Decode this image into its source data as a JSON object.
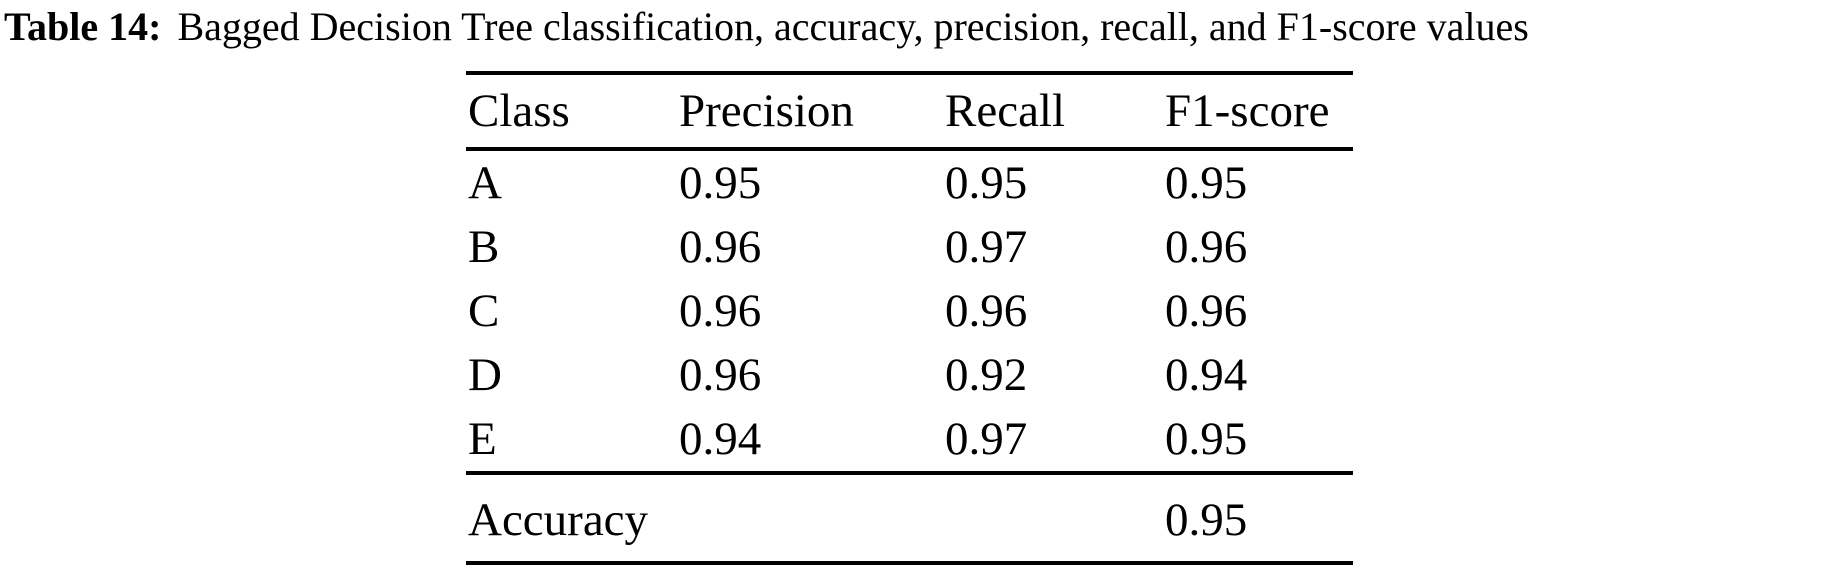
{
  "caption": {
    "label": "Table 14:",
    "text": "Bagged Decision Tree classification, accuracy, precision, recall, and F1-score values"
  },
  "table": {
    "headers": [
      "Class",
      "Precision",
      "Recall",
      "F1-score"
    ],
    "rows": [
      {
        "class": "A",
        "precision": "0.95",
        "recall": "0.95",
        "f1": "0.95"
      },
      {
        "class": "B",
        "precision": "0.96",
        "recall": "0.97",
        "f1": "0.96"
      },
      {
        "class": "C",
        "precision": "0.96",
        "recall": "0.96",
        "f1": "0.96"
      },
      {
        "class": "D",
        "precision": "0.96",
        "recall": "0.92",
        "f1": "0.94"
      },
      {
        "class": "E",
        "precision": "0.94",
        "recall": "0.97",
        "f1": "0.95"
      }
    ],
    "footer": {
      "label": "Accuracy",
      "value": "0.95"
    }
  },
  "colors": {
    "text": "#000000",
    "background": "#ffffff",
    "rule": "#000000"
  },
  "chart_data": {
    "type": "table",
    "title": "Table 14: Bagged Decision Tree classification, accuracy, precision, recall, and F1-score values",
    "columns": [
      "Class",
      "Precision",
      "Recall",
      "F1-score"
    ],
    "rows": [
      [
        "A",
        0.95,
        0.95,
        0.95
      ],
      [
        "B",
        0.96,
        0.97,
        0.96
      ],
      [
        "C",
        0.96,
        0.96,
        0.96
      ],
      [
        "D",
        0.96,
        0.92,
        0.94
      ],
      [
        "E",
        0.94,
        0.97,
        0.95
      ]
    ],
    "accuracy": 0.95
  }
}
